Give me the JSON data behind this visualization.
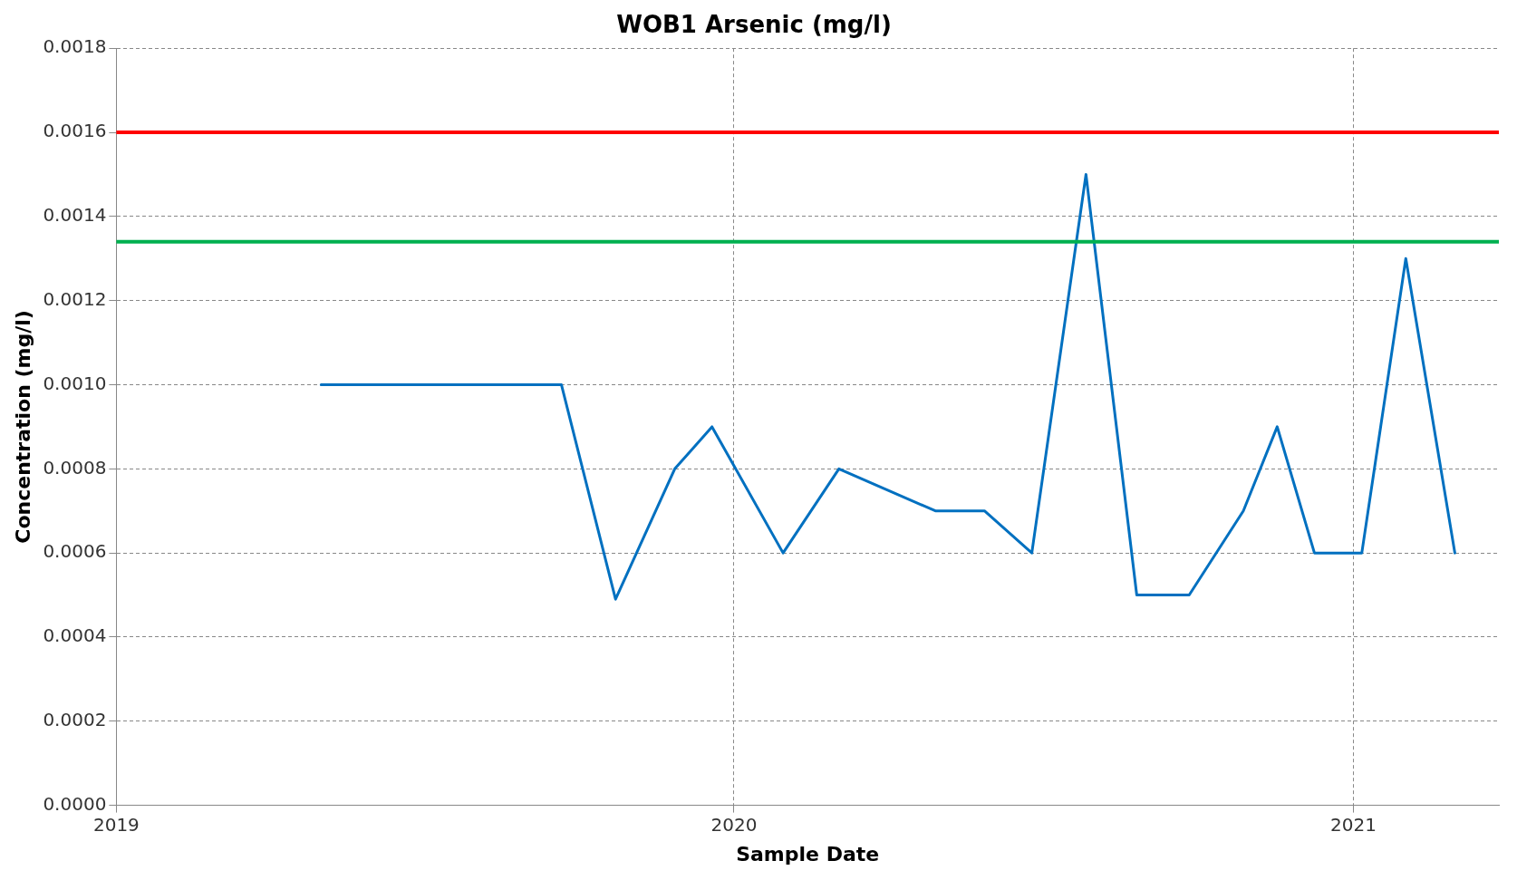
{
  "chart_data": {
    "type": "line",
    "title": "WOB1 Arsenic (mg/l)",
    "xlabel": "Sample Date",
    "ylabel": "Concentration (mg/l)",
    "x": [
      "2019-05-02",
      "2019-09-21",
      "2019-10-23",
      "2019-11-27",
      "2019-12-19",
      "2020-01-30",
      "2020-03-03",
      "2020-04-29",
      "2020-05-28",
      "2020-06-25",
      "2020-07-27",
      "2020-08-26",
      "2020-09-26",
      "2020-10-28",
      "2020-11-17",
      "2020-12-09",
      "2021-01-06",
      "2021-02-01",
      "2021-03-02"
    ],
    "series": [
      {
        "color": "#0070c0",
        "values": [
          0.001,
          0.001,
          0.00049,
          0.0008,
          0.0009,
          0.0006,
          0.0008,
          0.0007,
          0.0007,
          0.0006,
          0.0015,
          0.0005,
          0.0005,
          0.0007,
          0.0009,
          0.0006,
          0.0006,
          0.0013,
          0.0006
        ]
      }
    ],
    "xlim": [
      "2019-01-01",
      "2021-03-28"
    ],
    "xticks": [
      "2019",
      "2020",
      "2021"
    ],
    "ylim": [
      0,
      0.0018
    ],
    "yticks": [
      {
        "value": 0,
        "label": "0.0000"
      },
      {
        "value": 0.0002,
        "label": "0.0002"
      },
      {
        "value": 0.0004,
        "label": "0.0004"
      },
      {
        "value": 0.0006,
        "label": "0.0006"
      },
      {
        "value": 0.0008,
        "label": "0.0008"
      },
      {
        "value": 0.001,
        "label": "0.0010"
      },
      {
        "value": 0.0012,
        "label": "0.0012"
      },
      {
        "value": 0.0014,
        "label": "0.0014"
      },
      {
        "value": 0.0016,
        "label": "0.0016"
      },
      {
        "value": 0.0018,
        "label": "0.0018"
      }
    ],
    "ref_lines": [
      {
        "axis": "y",
        "value": 0.0016,
        "color": "#ff0000"
      },
      {
        "axis": "y",
        "value": 0.00134,
        "color": "#00b050"
      }
    ],
    "grid": true,
    "legend": false,
    "marker": "none",
    "line_style": "solid"
  }
}
